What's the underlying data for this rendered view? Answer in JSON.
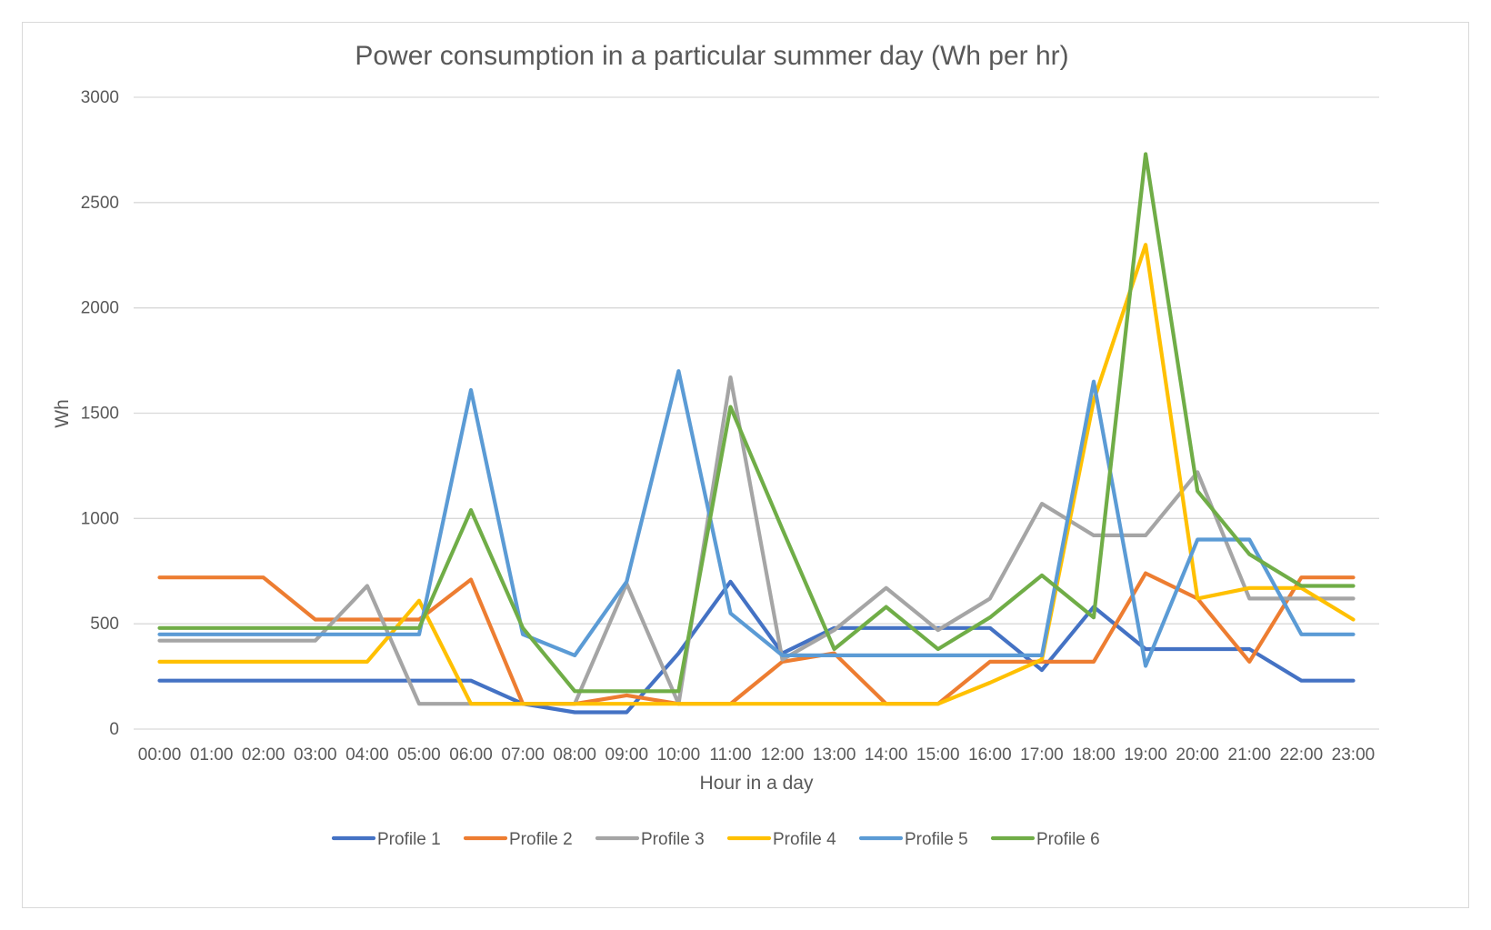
{
  "chart_data": {
    "type": "line",
    "title": "Power consumption in a particular summer day (Wh per hr)",
    "xlabel": "Hour in a day",
    "ylabel": "Wh",
    "ylim": [
      0,
      3000
    ],
    "yticks": [
      0,
      500,
      1000,
      1500,
      2000,
      2500,
      3000
    ],
    "grid": true,
    "legend_position": "bottom",
    "categories": [
      "00:00",
      "01:00",
      "02:00",
      "03:00",
      "04:00",
      "05:00",
      "06:00",
      "07:00",
      "08:00",
      "09:00",
      "10:00",
      "11:00",
      "12:00",
      "13:00",
      "14:00",
      "15:00",
      "16:00",
      "17:00",
      "18:00",
      "19:00",
      "20:00",
      "21:00",
      "22:00",
      "23:00"
    ],
    "series": [
      {
        "name": "Profile 1",
        "color": "#4472C4",
        "values": [
          230,
          230,
          230,
          230,
          230,
          230,
          230,
          120,
          80,
          80,
          360,
          700,
          360,
          480,
          480,
          480,
          480,
          280,
          580,
          380,
          380,
          380,
          230,
          230
        ]
      },
      {
        "name": "Profile 2",
        "color": "#ED7D31",
        "values": [
          720,
          720,
          720,
          520,
          520,
          520,
          710,
          120,
          120,
          160,
          120,
          120,
          320,
          360,
          120,
          120,
          320,
          320,
          320,
          740,
          620,
          320,
          720,
          720
        ]
      },
      {
        "name": "Profile 3",
        "color": "#A5A5A5",
        "values": [
          420,
          420,
          420,
          420,
          680,
          120,
          120,
          120,
          120,
          690,
          120,
          1670,
          330,
          470,
          670,
          470,
          620,
          1070,
          920,
          920,
          1220,
          620,
          620,
          620
        ]
      },
      {
        "name": "Profile 4",
        "color": "#FFC000",
        "values": [
          320,
          320,
          320,
          320,
          320,
          610,
          120,
          120,
          120,
          120,
          120,
          120,
          120,
          120,
          120,
          120,
          220,
          330,
          1560,
          2300,
          620,
          670,
          670,
          520
        ]
      },
      {
        "name": "Profile 5",
        "color": "#5B9BD5",
        "values": [
          450,
          450,
          450,
          450,
          450,
          450,
          1610,
          450,
          350,
          700,
          1700,
          550,
          350,
          350,
          350,
          350,
          350,
          350,
          1650,
          300,
          900,
          900,
          450,
          450
        ]
      },
      {
        "name": "Profile 6",
        "color": "#70AD47",
        "values": [
          480,
          480,
          480,
          480,
          480,
          480,
          1040,
          480,
          180,
          180,
          180,
          1530,
          950,
          380,
          580,
          380,
          530,
          730,
          530,
          2730,
          1130,
          830,
          680,
          680
        ]
      }
    ]
  }
}
